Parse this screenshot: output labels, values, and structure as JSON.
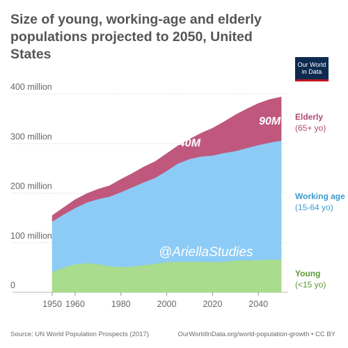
{
  "title": "Size of young, working-age and elderly populations projected to 2050, United States",
  "logo": {
    "line1": "Our World",
    "line2": "in Data"
  },
  "watermark": "@AriellaStudies",
  "footer": {
    "source": "Source: UN World Population Prospects (2017)",
    "url": "OurWorldInData.org/world-population-growth • CC BY"
  },
  "chart_data": {
    "type": "area",
    "stacked": true,
    "x": [
      1950,
      1955,
      1960,
      1965,
      1970,
      1975,
      1980,
      1985,
      1990,
      1995,
      2000,
      2005,
      2010,
      2015,
      2020,
      2025,
      2030,
      2035,
      2040,
      2045,
      2050
    ],
    "series": [
      {
        "name": "Young",
        "sublabel": "(<15 yo)",
        "color": "#a9dc8c",
        "label_color": "#5a9a2f",
        "values": [
          41,
          50,
          57,
          59,
          57,
          53,
          51,
          52,
          55,
          58,
          61,
          62,
          62,
          62,
          61,
          62,
          64,
          65,
          65,
          66,
          66
        ]
      },
      {
        "name": "Working age",
        "sublabel": "(15-64 yo)",
        "color": "#8ccbf5",
        "label_color": "#3a9bd0",
        "values": [
          102,
          107,
          113,
          122,
          131,
          140,
          151,
          160,
          167,
          173,
          184,
          198,
          207,
          212,
          215,
          219,
          221,
          226,
          232,
          236,
          240
        ]
      },
      {
        "name": "Elderly",
        "sublabel": "(65+ yo)",
        "color": "#c0587e",
        "label_color": "#b04a72",
        "values": [
          12,
          14,
          17,
          18,
          20,
          22,
          26,
          28,
          31,
          33,
          35,
          36,
          40,
          47,
          55,
          63,
          73,
          79,
          84,
          87,
          88
        ]
      }
    ],
    "xlim": [
      1950,
      2053
    ],
    "ylim": [
      0,
      400
    ],
    "yticks": [
      0,
      100,
      200,
      300,
      400
    ],
    "ytick_labels": [
      "0",
      "100 million",
      "200 million",
      "300 million",
      "400 million"
    ],
    "xticks": [
      1950,
      1960,
      1980,
      2000,
      2020,
      2040
    ],
    "annotations": [
      {
        "text": "40M",
        "x": 2010,
        "y": 294
      },
      {
        "text": "90M",
        "x": 2045,
        "y": 338
      }
    ],
    "grid": "horizontal",
    "legend": "right, inline labels"
  }
}
